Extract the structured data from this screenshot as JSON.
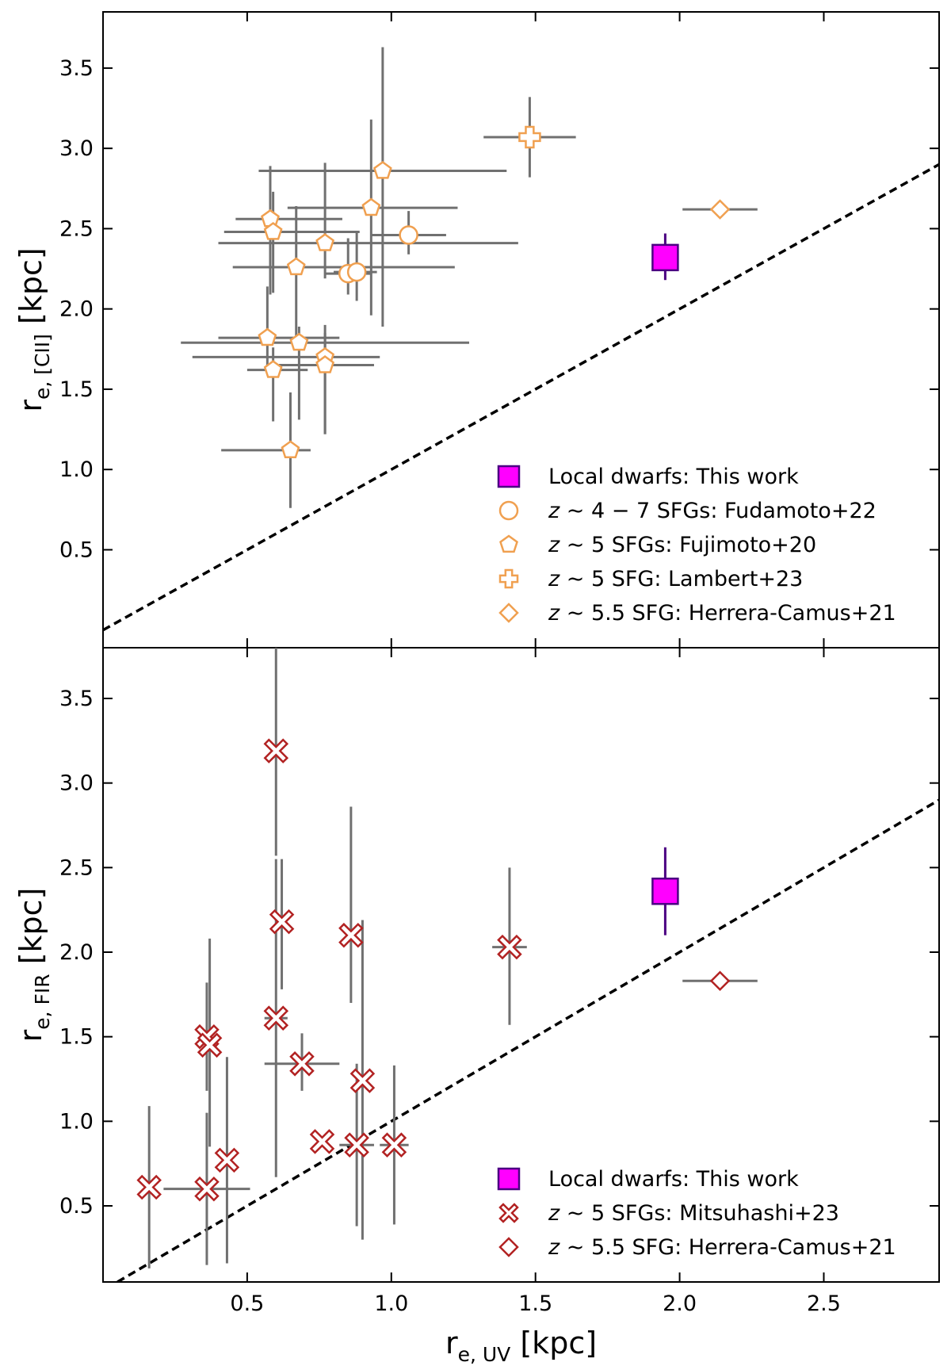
{
  "chart_data": [
    {
      "type": "scatter",
      "panel": "top",
      "ylabel_main": "r",
      "ylabel_sub": "e, [CII]",
      "ylabel_unit": "[kpc]",
      "xlim": [
        0.0,
        2.9
      ],
      "ylim": [
        -0.11,
        3.85
      ],
      "x_ticks": [
        0.5,
        1.0,
        1.5,
        2.0,
        2.5
      ],
      "y_ticks": [
        "0.5",
        "1.0",
        "1.5",
        "2.0",
        "2.5",
        "3.0",
        "3.5"
      ],
      "grid": false,
      "legend_position": "lower-right",
      "one_to_one_line": true,
      "series": [
        {
          "name": "Local dwarfs: This work",
          "marker": "square",
          "face": "#ff00ff",
          "edge": "#4b0082",
          "points": [
            {
              "x": 1.95,
              "y": 2.32,
              "xerr": [
                0,
                0
              ],
              "yerr": [
                0.14,
                0.15
              ]
            }
          ]
        },
        {
          "name": "$z\\sim4-7$ SFGs: Fudamoto+22",
          "label_parts": [
            "z",
            " ∼ 4 − 7 SFGs: Fudamoto+22"
          ],
          "marker": "circle",
          "face": "#ffffff",
          "edge": "#f0a050",
          "points": [
            {
              "x": 0.85,
              "y": 2.22,
              "xerr": [
                0.08,
                0.08
              ],
              "yerr": [
                0.13,
                0.22
              ]
            },
            {
              "x": 0.88,
              "y": 2.23,
              "xerr": [
                0.08,
                0.07
              ],
              "yerr": [
                0.18,
                0.25
              ]
            },
            {
              "x": 1.06,
              "y": 2.46,
              "xerr": [
                0.13,
                0.13
              ],
              "yerr": [
                0.12,
                0.15
              ]
            }
          ]
        },
        {
          "name": "$z\\sim5$ SFGs: Fujimoto+20",
          "label_parts": [
            "z",
            " ∼ 5 SFGs: Fujimoto+20"
          ],
          "marker": "pentagon",
          "face": "#ffffff",
          "edge": "#f0a050",
          "points": [
            {
              "x": 0.58,
              "y": 2.56,
              "xerr": [
                0.12,
                0.25
              ],
              "yerr": [
                0.47,
                0.33
              ]
            },
            {
              "x": 0.59,
              "y": 2.48,
              "xerr": [
                0.17,
                0.3
              ],
              "yerr": [
                0.38,
                0.25
              ]
            },
            {
              "x": 0.97,
              "y": 2.86,
              "xerr": [
                0.43,
                0.43
              ],
              "yerr": [
                0.97,
                0.77
              ]
            },
            {
              "x": 0.93,
              "y": 2.63,
              "xerr": [
                0.29,
                0.3
              ],
              "yerr": [
                0.67,
                0.55
              ]
            },
            {
              "x": 0.77,
              "y": 2.41,
              "xerr": [
                0.37,
                0.67
              ],
              "yerr": [
                0.22,
                0.5
              ]
            },
            {
              "x": 0.67,
              "y": 2.26,
              "xerr": [
                0.22,
                0.55
              ],
              "yerr": [
                0.48,
                0.38
              ]
            },
            {
              "x": 0.57,
              "y": 1.82,
              "xerr": [
                0.17,
                0.25
              ],
              "yerr": [
                0.22,
                0.32
              ]
            },
            {
              "x": 0.68,
              "y": 1.79,
              "xerr": [
                0.41,
                0.59
              ],
              "yerr": [
                0.48,
                0.1
              ]
            },
            {
              "x": 0.77,
              "y": 1.7,
              "xerr": [
                0.46,
                0.19
              ],
              "yerr": [
                0.48,
                0.2
              ]
            },
            {
              "x": 0.59,
              "y": 1.62,
              "xerr": [
                0.09,
                0.12
              ],
              "yerr": [
                0.32,
                0.14
              ]
            },
            {
              "x": 0.77,
              "y": 1.65,
              "xerr": [
                0.16,
                0.17
              ],
              "yerr": [
                0.43,
                0.2
              ]
            },
            {
              "x": 0.65,
              "y": 1.12,
              "xerr": [
                0.24,
                0.07
              ],
              "yerr": [
                0.36,
                0.36
              ]
            }
          ]
        },
        {
          "name": "$z\\sim5$ SFG: Lambert+23",
          "label_parts": [
            "z",
            " ∼ 5 SFG: Lambert+23"
          ],
          "marker": "plus",
          "face": "#ffffff",
          "edge": "#f0a050",
          "points": [
            {
              "x": 1.48,
              "y": 3.07,
              "xerr": [
                0.16,
                0.16
              ],
              "yerr": [
                0.25,
                0.25
              ]
            }
          ]
        },
        {
          "name": "$z\\sim5.5$ SFG: Herrera-Camus+21",
          "label_parts": [
            "z",
            " ∼ 5.5 SFG: Herrera-Camus+21"
          ],
          "marker": "diamond",
          "face": "#ffffff",
          "edge": "#f0a050",
          "points": [
            {
              "x": 2.14,
              "y": 2.62,
              "xerr": [
                0.13,
                0.13
              ],
              "yerr": [
                0,
                0
              ]
            }
          ]
        }
      ]
    },
    {
      "type": "scatter",
      "panel": "bottom",
      "xlabel_main": "r",
      "xlabel_sub": "e, UV",
      "xlabel_unit": "[kpc]",
      "ylabel_main": "r",
      "ylabel_sub": "e, FIR",
      "ylabel_unit": "[kpc]",
      "xlim": [
        0.0,
        2.9
      ],
      "ylim": [
        0.05,
        3.8
      ],
      "x_ticks": [
        "0.5",
        "1.0",
        "1.5",
        "2.0",
        "2.5"
      ],
      "y_ticks": [
        "0.5",
        "1.0",
        "1.5",
        "2.0",
        "2.5",
        "3.0",
        "3.5"
      ],
      "grid": false,
      "legend_position": "lower-right",
      "one_to_one_line": true,
      "series": [
        {
          "name": "Local dwarfs: This work",
          "marker": "square",
          "face": "#ff00ff",
          "edge": "#4b0082",
          "points": [
            {
              "x": 1.95,
              "y": 2.36,
              "xerr": [
                0,
                0
              ],
              "yerr": [
                0.26,
                0.26
              ]
            }
          ]
        },
        {
          "name": "$z\\sim5$ SFGs: Mitsuhashi+23",
          "label_parts": [
            "z",
            " ∼ 5 SFGs: Mitsuhashi+23"
          ],
          "marker": "x",
          "face": "#ffffff",
          "edge": "#b22222",
          "points": [
            {
              "x": 0.6,
              "y": 3.19,
              "xerr": [
                0.0,
                0.0
              ],
              "yerr": [
                0.62,
                0.66
              ]
            },
            {
              "x": 0.62,
              "y": 2.18,
              "xerr": [
                0.0,
                0.0
              ],
              "yerr": [
                0.4,
                0.37
              ]
            },
            {
              "x": 0.86,
              "y": 2.1,
              "xerr": [
                0.0,
                0.0
              ],
              "yerr": [
                0.4,
                0.76
              ]
            },
            {
              "x": 1.41,
              "y": 2.03,
              "xerr": [
                0.06,
                0.06
              ],
              "yerr": [
                0.46,
                0.47
              ]
            },
            {
              "x": 0.6,
              "y": 1.61,
              "xerr": [
                0.04,
                0.04
              ],
              "yerr": [
                0.94,
                0.94
              ]
            },
            {
              "x": 0.36,
              "y": 1.5,
              "xerr": [
                0.0,
                0.0
              ],
              "yerr": [
                0.32,
                0.32
              ]
            },
            {
              "x": 0.37,
              "y": 1.45,
              "xerr": [
                0.0,
                0.0
              ],
              "yerr": [
                0.6,
                0.63
              ]
            },
            {
              "x": 0.69,
              "y": 1.34,
              "xerr": [
                0.13,
                0.13
              ],
              "yerr": [
                0.16,
                0.18
              ]
            },
            {
              "x": 0.9,
              "y": 1.24,
              "xerr": [
                0.0,
                0.0
              ],
              "yerr": [
                0.94,
                0.95
              ]
            },
            {
              "x": 0.76,
              "y": 0.88,
              "xerr": [
                0.0,
                0.0
              ],
              "yerr": [
                0.0,
                0.0
              ]
            },
            {
              "x": 0.88,
              "y": 0.86,
              "xerr": [
                0.06,
                0.06
              ],
              "yerr": [
                0.48,
                0.48
              ]
            },
            {
              "x": 1.01,
              "y": 0.86,
              "xerr": [
                0.05,
                0.05
              ],
              "yerr": [
                0.47,
                0.47
              ]
            },
            {
              "x": 0.43,
              "y": 0.77,
              "xerr": [
                0.0,
                0.0
              ],
              "yerr": [
                0.61,
                0.61
              ]
            },
            {
              "x": 0.16,
              "y": 0.61,
              "xerr": [
                0.0,
                0.0
              ],
              "yerr": [
                0.48,
                0.48
              ]
            },
            {
              "x": 0.36,
              "y": 0.6,
              "xerr": [
                0.15,
                0.15
              ],
              "yerr": [
                0.45,
                0.45
              ]
            }
          ]
        },
        {
          "name": "$z\\sim5.5$ SFG: Herrera-Camus+21",
          "label_parts": [
            "z",
            " ∼ 5.5 SFG: Herrera-Camus+21"
          ],
          "marker": "diamond",
          "face": "#ffffff",
          "edge": "#b22222",
          "points": [
            {
              "x": 2.14,
              "y": 1.83,
              "xerr": [
                0.13,
                0.13
              ],
              "yerr": [
                0,
                0
              ]
            }
          ]
        }
      ]
    }
  ],
  "colors": {
    "errorbar": "#707070",
    "dwarf_errorbar": "#4b0082",
    "line": "#000000"
  }
}
